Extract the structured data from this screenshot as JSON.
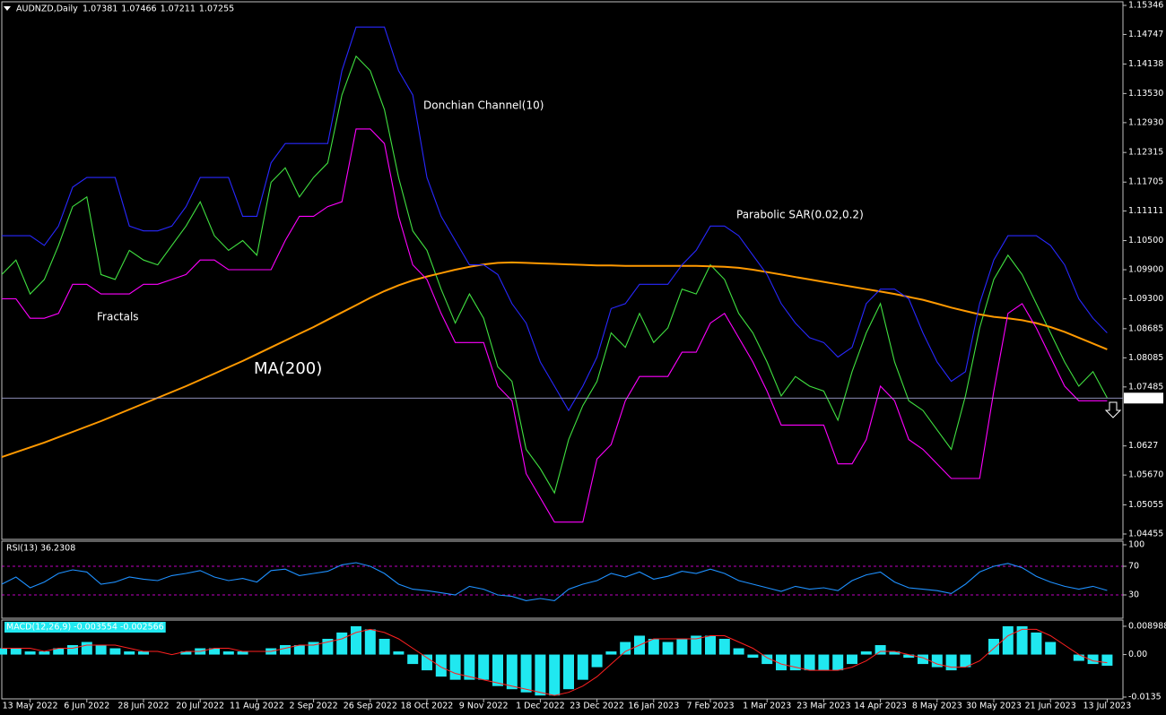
{
  "chart_data": [
    {
      "type": "line",
      "title": "AUDNZD,Daily",
      "ohlc": [
        1.07381,
        1.07466,
        1.07211,
        1.07255
      ],
      "ylim": [
        1.04455,
        1.15346
      ],
      "yticks": [
        1.15346,
        1.14747,
        1.14138,
        {
          "value": 1.1353,
          "label": "1.13530"
        },
        {
          "value": 1.1293,
          "label": "1.12930"
        },
        1.12315,
        1.11705,
        1.11111,
        {
          "value": 1.105,
          "label": "1.10500"
        },
        {
          "value": 1.099,
          "label": "1.09900"
        },
        {
          "value": 1.093,
          "label": "1.09300"
        },
        1.08685,
        1.08085,
        1.07485,
        1.0627,
        {
          "value": 1.0567,
          "label": "1.05670"
        },
        1.05055,
        1.04455
      ],
      "last_price": 1.07255,
      "annotations": [
        {
          "text": "Donchian Channel(10)",
          "color": "#32cd32"
        },
        {
          "text": "Parabolic SAR(0.02,0.2)",
          "color": "#32cd32"
        },
        {
          "text": "Fractals",
          "color": "#32cd32"
        },
        {
          "text": "MA(200)",
          "color": "#ff9900"
        }
      ],
      "series": [
        {
          "color": "#40e040",
          "values": [
            1.098,
            1.101,
            1.094,
            1.097,
            1.104,
            1.112,
            1.114,
            1.098,
            1.097,
            1.103,
            1.101,
            1.1,
            1.104,
            1.108,
            1.113,
            1.106,
            1.103,
            1.105,
            1.102,
            1.117,
            1.12,
            1.114,
            1.118,
            1.121,
            1.135,
            1.143,
            1.14,
            1.132,
            1.118,
            1.107,
            1.103,
            1.095,
            1.088,
            1.094,
            1.089,
            1.079,
            1.076,
            1.062,
            1.058,
            1.053,
            1.064,
            1.071,
            1.076,
            1.086,
            1.083,
            1.09,
            1.084,
            1.087,
            1.095,
            1.094,
            1.1,
            1.097,
            1.09,
            1.086,
            1.08,
            1.073,
            1.077,
            1.075,
            1.074,
            1.068,
            1.078,
            1.086,
            1.092,
            1.08,
            1.072,
            1.07,
            1.066,
            1.062,
            1.073,
            1.087,
            1.097,
            1.102,
            1.098,
            1.092,
            1.086,
            1.08,
            1.075,
            1.078,
            1.0726
          ]
        },
        {
          "color": "#ff9900",
          "values": [
            1.0604,
            1.0614,
            1.0624,
            1.0634,
            1.0645,
            1.0656,
            1.0667,
            1.0678,
            1.069,
            1.0702,
            1.0714,
            1.0726,
            1.0738,
            1.075,
            1.0763,
            1.0776,
            1.0789,
            1.0802,
            1.0816,
            1.083,
            1.0844,
            1.0858,
            1.0872,
            1.0887,
            1.0902,
            1.0917,
            1.0932,
            1.0946,
            1.0958,
            1.0968,
            1.0976,
            1.0983,
            1.099,
            1.0996,
            1.1001,
            1.1004,
            1.1005,
            1.1004,
            1.1003,
            1.1002,
            1.1001,
            1.1,
            1.0999,
            1.0999,
            1.0998,
            1.0998,
            1.0998,
            1.0998,
            1.0998,
            1.0998,
            1.0997,
            1.0996,
            1.0994,
            1.099,
            1.0985,
            1.098,
            1.0975,
            1.097,
            1.0965,
            1.096,
            1.0955,
            1.095,
            1.0945,
            1.094,
            1.0934,
            1.0928,
            1.092,
            1.0912,
            1.0905,
            1.0898,
            1.0893,
            1.089,
            1.0886,
            1.088,
            1.0872,
            1.0862,
            1.085,
            1.0838,
            1.0826
          ]
        },
        {
          "color": "#2828ff",
          "values": [
            1.106,
            1.106,
            1.106,
            1.104,
            1.108,
            1.116,
            1.118,
            1.118,
            1.118,
            1.108,
            1.107,
            1.107,
            1.108,
            1.112,
            1.118,
            1.118,
            1.118,
            1.11,
            1.11,
            1.121,
            1.125,
            1.125,
            1.125,
            1.125,
            1.14,
            1.149,
            1.149,
            1.149,
            1.14,
            1.135,
            1.118,
            1.11,
            1.105,
            1.1,
            1.1,
            1.098,
            1.092,
            1.088,
            1.08,
            1.075,
            1.07,
            1.075,
            1.081,
            1.091,
            1.092,
            1.096,
            1.096,
            1.096,
            1.1,
            1.103,
            1.108,
            1.108,
            1.106,
            1.102,
            1.098,
            1.092,
            1.088,
            1.085,
            1.084,
            1.081,
            1.083,
            1.092,
            1.095,
            1.095,
            1.093,
            1.086,
            1.08,
            1.076,
            1.078,
            1.092,
            1.101,
            1.106,
            1.106,
            1.106,
            1.104,
            1.1,
            1.093,
            1.089,
            1.086
          ]
        },
        {
          "color": "#ff00ff",
          "values": [
            1.093,
            1.093,
            1.089,
            1.089,
            1.09,
            1.096,
            1.096,
            1.094,
            1.094,
            1.094,
            1.096,
            1.096,
            1.097,
            1.098,
            1.101,
            1.101,
            1.099,
            1.099,
            1.099,
            1.099,
            1.105,
            1.11,
            1.11,
            1.112,
            1.113,
            1.128,
            1.128,
            1.125,
            1.11,
            1.1,
            1.097,
            1.09,
            1.084,
            1.084,
            1.084,
            1.075,
            1.072,
            1.057,
            1.052,
            1.047,
            1.047,
            1.047,
            1.06,
            1.063,
            1.072,
            1.077,
            1.077,
            1.077,
            1.082,
            1.082,
            1.088,
            1.09,
            1.085,
            1.08,
            1.074,
            1.067,
            1.067,
            1.067,
            1.067,
            1.059,
            1.059,
            1.064,
            1.075,
            1.072,
            1.064,
            1.062,
            1.059,
            1.056,
            1.056,
            1.056,
            1.074,
            1.09,
            1.092,
            1.087,
            1.081,
            1.075,
            1.072,
            1.072,
            1.072
          ]
        }
      ]
    },
    {
      "type": "line",
      "title": "RSI(13) 36.2308",
      "ylim": [
        0,
        100
      ],
      "yticks": [
        100,
        70,
        30
      ],
      "grid": "dashed",
      "series": [
        {
          "color": "#1e90ff",
          "values": [
            45,
            55,
            40,
            48,
            60,
            65,
            62,
            45,
            48,
            55,
            52,
            50,
            57,
            60,
            64,
            55,
            50,
            53,
            48,
            64,
            66,
            57,
            60,
            63,
            72,
            75,
            70,
            60,
            45,
            38,
            36,
            33,
            30,
            42,
            38,
            30,
            28,
            22,
            25,
            22,
            38,
            45,
            50,
            60,
            55,
            62,
            52,
            56,
            63,
            60,
            66,
            60,
            50,
            45,
            40,
            35,
            42,
            38,
            40,
            36,
            50,
            58,
            62,
            48,
            40,
            38,
            36,
            32,
            45,
            62,
            70,
            74,
            68,
            56,
            48,
            42,
            38,
            42,
            36.2308
          ]
        }
      ]
    },
    {
      "type": "macd",
      "title": "MACD(12,26,9) -0.003554 -0.002566",
      "ylim": [
        -0.0135,
        0.0104
      ],
      "yticks": [
        0.008988,
        {
          "value": 0,
          "label": "0.00"
        },
        -0.0135
      ],
      "categories": [
        null,
        null,
        "13 May 2022",
        null,
        null,
        null,
        "6 Jun 2022",
        null,
        null,
        null,
        "28 Jun 2022",
        null,
        null,
        null,
        "20 Jul 2022",
        null,
        null,
        null,
        "11 Aug 2022",
        null,
        null,
        null,
        "2 Sep 2022",
        null,
        null,
        null,
        "26 Sep 2022",
        null,
        null,
        null,
        "18 Oct 2022",
        null,
        null,
        null,
        "9 Nov 2022",
        null,
        null,
        null,
        "1 Dec 2022",
        null,
        null,
        null,
        "23 Dec 2022",
        null,
        null,
        null,
        "16 Jan 2023",
        null,
        null,
        null,
        "7 Feb 2023",
        null,
        null,
        null,
        "1 Mar 2023",
        null,
        null,
        null,
        "23 Mar 2023",
        null,
        null,
        null,
        "14 Apr 2023",
        null,
        null,
        null,
        "8 May 2023",
        null,
        null,
        null,
        "30 May 2023",
        null,
        null,
        null,
        "21 Jun 2023",
        null,
        null,
        null,
        "13 Jul 2023"
      ],
      "series": [
        {
          "color": "#20e8f0",
          "values": [
            0.002,
            0.002,
            0.001,
            0.001,
            0.002,
            0.003,
            0.004,
            0.003,
            0.002,
            0.001,
            0.001,
            0,
            0,
            0.001,
            0.002,
            0.002,
            0.001,
            0.001,
            0,
            0.002,
            0.003,
            0.003,
            0.004,
            0.005,
            0.007,
            0.009,
            0.008,
            0.005,
            0.001,
            -0.003,
            -0.005,
            -0.007,
            -0.008,
            -0.008,
            -0.008,
            -0.01,
            -0.011,
            -0.012,
            -0.013,
            -0.013,
            -0.011,
            -0.008,
            -0.004,
            0.001,
            0.004,
            0.006,
            0.005,
            0.004,
            0.005,
            0.006,
            0.006,
            0.005,
            0.002,
            -0.001,
            -0.003,
            -0.005,
            -0.005,
            -0.005,
            -0.005,
            -0.005,
            -0.003,
            0.001,
            0.003,
            0.001,
            -0.001,
            -0.003,
            -0.004,
            -0.005,
            -0.004,
            0,
            0.005,
            0.009,
            0.009,
            0.007,
            0.004,
            0,
            -0.002,
            -0.003,
            -0.003554
          ]
        },
        {
          "color": "#ff2020",
          "values": [
            0.002,
            0.002,
            0.002,
            0.001,
            0.002,
            0.002,
            0.003,
            0.003,
            0.003,
            0.002,
            0.001,
            0.001,
            0,
            0.001,
            0.001,
            0.002,
            0.002,
            0.001,
            0.001,
            0.001,
            0.002,
            0.003,
            0.003,
            0.004,
            0.005,
            0.007,
            0.008,
            0.007,
            0.005,
            0.002,
            -0.001,
            -0.004,
            -0.006,
            -0.007,
            -0.008,
            -0.009,
            -0.01,
            -0.011,
            -0.012,
            -0.013,
            -0.012,
            -0.01,
            -0.007,
            -0.003,
            0.001,
            0.003,
            0.005,
            0.005,
            0.005,
            0.005,
            0.006,
            0.006,
            0.004,
            0.002,
            -0.001,
            -0.003,
            -0.004,
            -0.005,
            -0.005,
            -0.005,
            -0.004,
            -0.002,
            0.001,
            0.001,
            0,
            -0.001,
            -0.003,
            -0.004,
            -0.004,
            -0.002,
            0.002,
            0.006,
            0.008,
            0.008,
            0.006,
            0.003,
            0,
            -0.002,
            -0.002566
          ]
        }
      ]
    }
  ]
}
